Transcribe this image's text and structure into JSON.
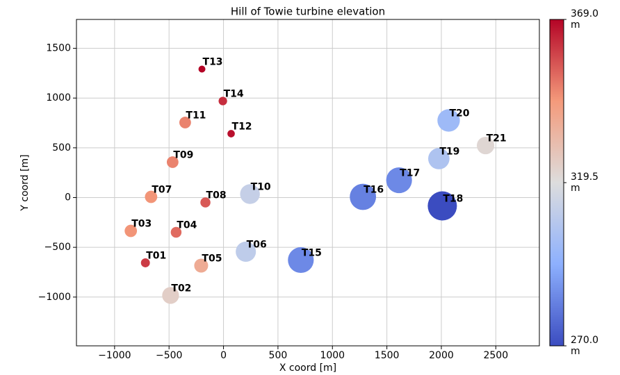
{
  "chart_data": {
    "type": "scatter",
    "title": "Hill of Towie turbine elevation",
    "x_label": "X coord [m]",
    "y_label": "Y coord [m]",
    "labels": [
      "T01",
      "T02",
      "T03",
      "T04",
      "T05",
      "T06",
      "T07",
      "T08",
      "T09",
      "T10",
      "T11",
      "T12",
      "T13",
      "T14",
      "T15",
      "T16",
      "T17",
      "T18",
      "T19",
      "T20",
      "T21"
    ],
    "x": [
      -717,
      -486,
      -851,
      -435,
      -205,
      205,
      -665,
      -166,
      -467,
      243,
      -352,
      70,
      -198,
      -6,
      710,
      1280,
      1612,
      2009,
      1977,
      2067,
      2406
    ],
    "y": [
      -656,
      -984,
      -335,
      -349,
      -684,
      -544,
      7,
      -49,
      356,
      35,
      754,
      642,
      1291,
      970,
      -628,
      7,
      174,
      -84,
      391,
      775,
      523
    ],
    "values": [
      360,
      325,
      345,
      352,
      338,
      310,
      345,
      355,
      348,
      312,
      348,
      367,
      369,
      362,
      285,
      283,
      285,
      270,
      305,
      300,
      322
    ],
    "colormap": "coolwarm",
    "clim": [
      270,
      369
    ],
    "cticks": [
      {
        "value": 270,
        "label": "270.0\nm"
      },
      {
        "value": 319.5,
        "label": "319.5\nm"
      },
      {
        "value": 369,
        "label": "369.0\nm"
      }
    ],
    "xlim": [
      -1350,
      2900
    ],
    "ylim": [
      -1490,
      1790
    ],
    "xticks": [
      {
        "value": -1000,
        "label": "−1000"
      },
      {
        "value": -500,
        "label": "−500"
      },
      0,
      500,
      1000,
      1500,
      2000,
      2500
    ],
    "yticks": [
      {
        "value": -1000,
        "label": "−1000"
      },
      {
        "value": -500,
        "label": "−500"
      },
      0,
      500,
      1000,
      1500
    ],
    "grid": true
  }
}
